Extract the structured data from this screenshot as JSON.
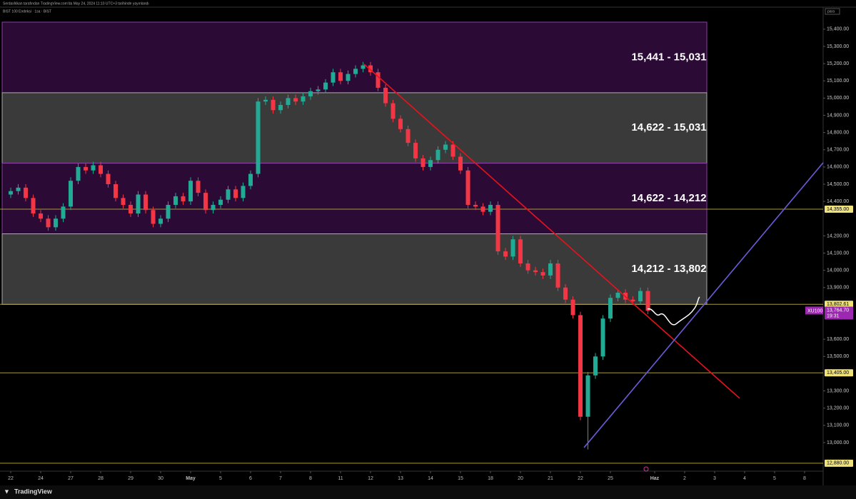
{
  "header": {
    "published": "SerdarAlkan tarafından TradingView.com'da May 24, 2024 11:10 UTC+3 tarihinde yayınlandı",
    "symbol_line": "BIST 100 Endeksi · 1sa · BIST",
    "currency": "para",
    "brand": "TradingView"
  },
  "chart_data": {
    "type": "candlestick",
    "grid": false,
    "xlim": [
      -1.43,
      108.38
    ],
    "xticks": [
      {
        "value": 0,
        "label": "22"
      },
      {
        "value": 4,
        "label": "24"
      },
      {
        "value": 8,
        "label": "27"
      },
      {
        "value": 12,
        "label": "28"
      },
      {
        "value": 16,
        "label": "29"
      },
      {
        "value": 20,
        "label": "30"
      },
      {
        "value": 24,
        "label": "May"
      },
      {
        "value": 28,
        "label": "5"
      },
      {
        "value": 32,
        "label": "6"
      },
      {
        "value": 36,
        "label": "7"
      },
      {
        "value": 40,
        "label": "8"
      },
      {
        "value": 44,
        "label": "11"
      },
      {
        "value": 48,
        "label": "12"
      },
      {
        "value": 52,
        "label": "13"
      },
      {
        "value": 56,
        "label": "14"
      },
      {
        "value": 60,
        "label": "15"
      },
      {
        "value": 64,
        "label": "18"
      },
      {
        "value": 68,
        "label": "20"
      },
      {
        "value": 72,
        "label": "21"
      },
      {
        "value": 76,
        "label": "22"
      },
      {
        "value": 80,
        "label": "25"
      },
      {
        "value": 85.9,
        "label": "Haz"
      },
      {
        "value": 89.9,
        "label": "2"
      },
      {
        "value": 93.9,
        "label": "3"
      },
      {
        "value": 97.9,
        "label": "4"
      },
      {
        "value": 101.9,
        "label": "5"
      },
      {
        "value": 105.9,
        "label": "8"
      }
    ],
    "ylim": [
      12834,
      15528
    ],
    "yticks": [
      {
        "value": 15400,
        "label": "15,400.00"
      },
      {
        "value": 15300,
        "label": "15,300.00"
      },
      {
        "value": 15200,
        "label": "15,200.00"
      },
      {
        "value": 15100,
        "label": "15,100.00"
      },
      {
        "value": 15000,
        "label": "15,000.00"
      },
      {
        "value": 14900,
        "label": "14,900.00"
      },
      {
        "value": 14800,
        "label": "14,800.00"
      },
      {
        "value": 14700,
        "label": "14,700.00"
      },
      {
        "value": 14600,
        "label": "14,600.00"
      },
      {
        "value": 14500,
        "label": "14,500.00"
      },
      {
        "value": 14400,
        "label": "14,400.00"
      },
      {
        "value": 14200,
        "label": "14,200.00"
      },
      {
        "value": 14100,
        "label": "14,100.00"
      },
      {
        "value": 14000,
        "label": "14,000.00"
      },
      {
        "value": 13900,
        "label": "13,900.00"
      },
      {
        "value": 13600,
        "label": "13,600.00"
      },
      {
        "value": 13500,
        "label": "13,500.00"
      },
      {
        "value": 13300,
        "label": "13,300.00"
      },
      {
        "value": 13200,
        "label": "13,200.00"
      },
      {
        "value": 13100,
        "label": "13,100.00"
      },
      {
        "value": 13000,
        "label": "13,000.00"
      }
    ],
    "up_color": "#22ab94",
    "down_color": "#f23645",
    "open": [
      14440,
      14460,
      14480,
      14420,
      14330,
      14300,
      14250,
      14300,
      14370,
      14520,
      14600,
      14580,
      14610,
      14560,
      14500,
      14420,
      14380,
      14330,
      14440,
      14350,
      14270,
      14300,
      14380,
      14430,
      14400,
      14520,
      14450,
      14350,
      14380,
      14410,
      14470,
      14420,
      14490,
      14560,
      14980,
      14990,
      14930,
      14960,
      15000,
      14980,
      15010,
      15040,
      15050,
      15090,
      15150,
      15100,
      15140,
      15170,
      15190,
      15150,
      15060,
      14970,
      14880,
      14820,
      14740,
      14650,
      14600,
      14640,
      14700,
      14730,
      14660,
      14580,
      14380,
      14370,
      14340,
      14380,
      14110,
      14080,
      14180,
      14040,
      14000,
      13990,
      13970,
      14040,
      13900,
      13830,
      13740,
      13150,
      13390,
      13500,
      13720,
      13840,
      13870,
      13830,
      13820,
      13880
    ],
    "high": [
      14480,
      14500,
      14500,
      14440,
      14350,
      14320,
      14320,
      14390,
      14540,
      14620,
      14620,
      14630,
      14630,
      14580,
      14520,
      14440,
      14400,
      14460,
      14460,
      14370,
      14320,
      14400,
      14450,
      14450,
      14540,
      14540,
      14470,
      14400,
      14430,
      14490,
      14490,
      14510,
      14580,
      15000,
      15010,
      15010,
      14980,
      15020,
      15020,
      15030,
      15060,
      15070,
      15110,
      15170,
      15170,
      15160,
      15190,
      15210,
      15210,
      15170,
      15080,
      14990,
      14900,
      14840,
      14760,
      14670,
      14660,
      14720,
      14750,
      14750,
      14680,
      14600,
      14400,
      14390,
      14400,
      14400,
      14130,
      14200,
      14200,
      14060,
      14020,
      14010,
      14060,
      14060,
      13920,
      13850,
      13760,
      13410,
      13520,
      13740,
      13860,
      13890,
      13890,
      13850,
      13900,
      13900
    ],
    "low": [
      14420,
      14440,
      14400,
      14310,
      14280,
      14230,
      14230,
      14280,
      14350,
      14500,
      14560,
      14560,
      14540,
      14480,
      14400,
      14360,
      14310,
      14310,
      14330,
      14250,
      14250,
      14280,
      14360,
      14380,
      14380,
      14430,
      14330,
      14330,
      14360,
      14390,
      14400,
      14400,
      14470,
      14540,
      14960,
      14910,
      14910,
      14940,
      14960,
      14960,
      14990,
      15020,
      15030,
      15070,
      15080,
      15080,
      15120,
      15150,
      15130,
      15040,
      14950,
      14860,
      14800,
      14720,
      14630,
      14580,
      14580,
      14620,
      14680,
      14640,
      14560,
      14360,
      14350,
      14320,
      14320,
      14090,
      14060,
      14060,
      14020,
      13980,
      13970,
      13950,
      13950,
      13880,
      13810,
      13720,
      13130,
      12960,
      13370,
      13480,
      13700,
      13820,
      13810,
      13800,
      13800,
      13745
    ],
    "close": [
      14460,
      14480,
      14420,
      14330,
      14300,
      14250,
      14300,
      14370,
      14520,
      14600,
      14580,
      14610,
      14560,
      14500,
      14420,
      14380,
      14330,
      14440,
      14350,
      14270,
      14300,
      14380,
      14430,
      14400,
      14520,
      14450,
      14350,
      14380,
      14410,
      14470,
      14420,
      14490,
      14560,
      14980,
      14990,
      14930,
      14960,
      15000,
      14980,
      15010,
      15040,
      15050,
      15090,
      15150,
      15100,
      15140,
      15170,
      15190,
      15150,
      15060,
      14970,
      14880,
      14820,
      14740,
      14650,
      14600,
      14640,
      14700,
      14730,
      14660,
      14580,
      14380,
      14370,
      14340,
      14380,
      14110,
      14080,
      14180,
      14040,
      14000,
      13990,
      13970,
      14040,
      13900,
      13830,
      13740,
      13150,
      13390,
      13500,
      13720,
      13840,
      13870,
      13830,
      13820,
      13880,
      13765
    ],
    "zones": [
      {
        "label": "15,441 - 15,031",
        "top": 15441,
        "bottom": 15031,
        "color": "#2b0b35"
      },
      {
        "label": "14,622 - 15,031",
        "top": 15031,
        "bottom": 14622,
        "color": "#3a3a3a"
      },
      {
        "label": "14,622 - 14,212",
        "top": 14622,
        "bottom": 14212,
        "color": "#2b0b35"
      },
      {
        "label": "14,212 - 13,802",
        "top": 14212,
        "bottom": 13802,
        "color": "#3a3a3a"
      }
    ],
    "levels": [
      {
        "value": 14355,
        "label": "14,355.00"
      },
      {
        "value": 13802.61,
        "label": "13,802.61"
      },
      {
        "value": 13405,
        "label": "13,405.00"
      },
      {
        "value": 12880,
        "label": "12,880.00"
      }
    ],
    "level_color": "#a89a3a",
    "trendlines": [
      {
        "color": "#e8121c",
        "x": [
          47.14,
          97.24
        ],
        "y": [
          15197,
          13257
        ]
      },
      {
        "color": "#6a5cd8",
        "x": [
          76.48,
          108.38
        ],
        "y": [
          12971,
          14625
        ]
      }
    ],
    "last": {
      "symbol": "XU100",
      "value": 13764.7,
      "label": "13,764.70",
      "time": "19:31",
      "color": "#9c27b0"
    }
  }
}
